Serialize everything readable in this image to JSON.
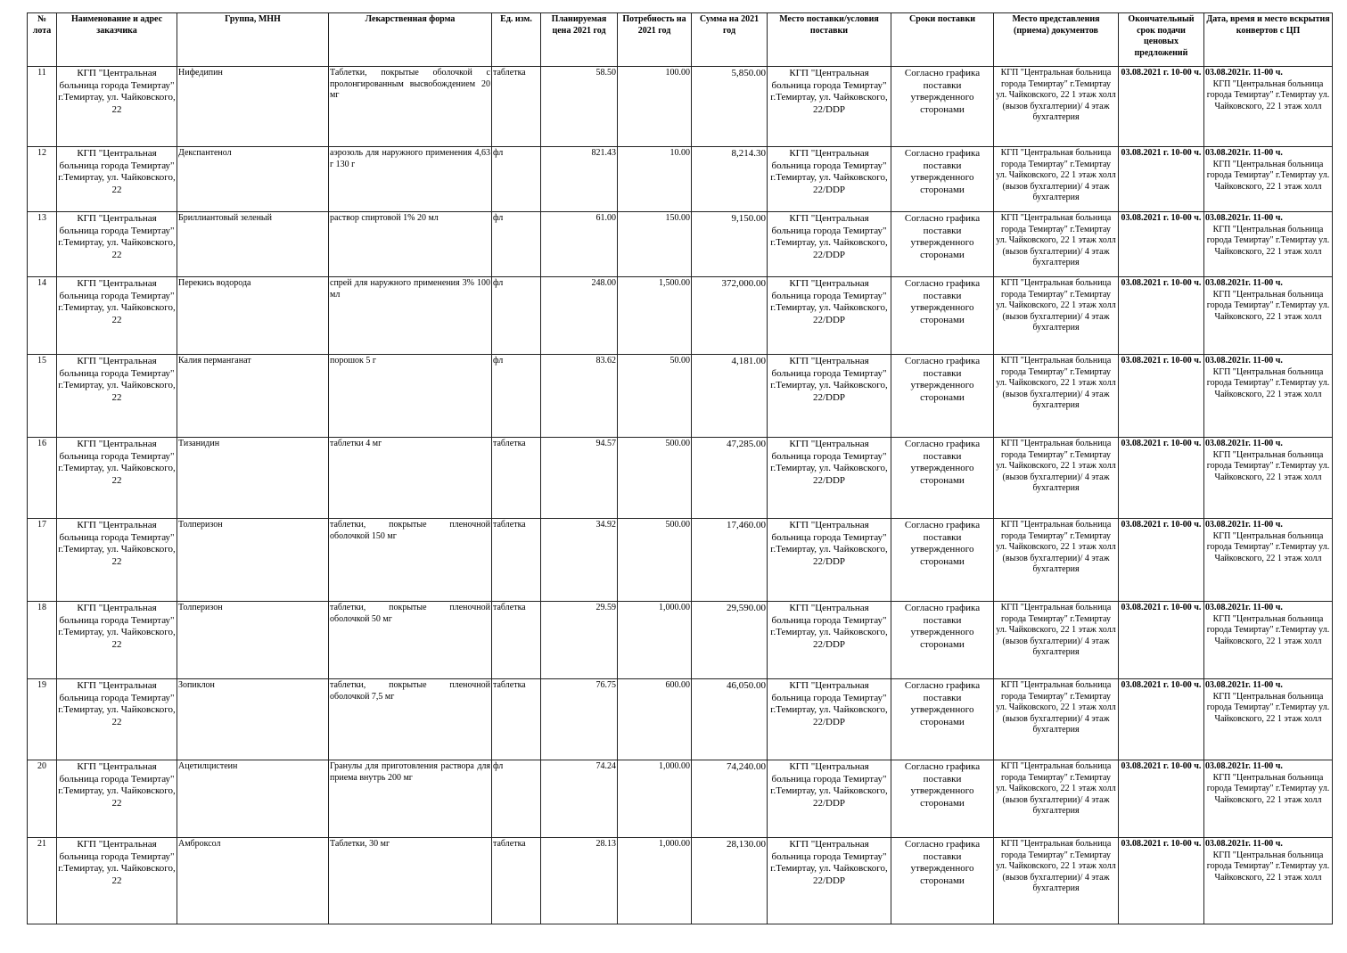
{
  "headers": [
    "№ лота",
    "Наименование и адрес заказчика",
    "Группа, МНН",
    "Лекарственная форма",
    "Ед. изм.",
    "Планируемая цена 2021 год",
    "Потребность на 2021 год",
    "Сумма на 2021 год",
    "Место поставки/условия поставки",
    "Сроки поставки",
    "Место представления (приема) документов",
    "Окончательный срок подачи ценовых предложений",
    "Дата, время и место вскрытия конвертов с ЦП"
  ],
  "common": {
    "customer": "КГП \"Центральная больница города Темиртау\" г.Темиртау, ул. Чайковского, 22",
    "delivery_place": "КГП \"Центральная больница города Темиртау\"  г.Темиртау, ул. Чайковского, 22/DDP",
    "delivery_terms": "Согласно графика поставки утвержденного сторонами",
    "docs_place": "КГП \"Центральная больница города Темиртау\"  г.Темиртау ул. Чайковского, 22 1 этаж холл (вызов бухгалтерии)/ 4 этаж бухгалтерия",
    "deadline": "03.08.2021 г. 10-00 ч.",
    "opening_datetime": "03.08.2021г. 11-00 ч.",
    "opening_place": "КГП \"Центральная больница города Темиртау\"  г.Темиртау ул. Чайковского, 22 1 этаж холл"
  },
  "rows": [
    {
      "lot": "11",
      "mnn": "Нифедипин",
      "form": "Таблетки, покрытые оболочкой с пролонгированным высвобождением 20 мг",
      "unit": "таблетка",
      "price": "58.50",
      "qty": "100.00",
      "sum": "5,850.00"
    },
    {
      "lot": "12",
      "mnn": "Декспантенол",
      "form": "аэрозоль для наружного применения 4,63 г 130 г",
      "unit": "фл",
      "price": "821.43",
      "qty": "10.00",
      "sum": "8,214.30"
    },
    {
      "lot": "13",
      "mnn": "Бриллиантовый зеленый",
      "form": "раствор спиртовой 1% 20 мл",
      "unit": "фл",
      "price": "61.00",
      "qty": "150.00",
      "sum": "9,150.00"
    },
    {
      "lot": "14",
      "mnn": "Перекись водорода",
      "form": "спрей для наружного применения 3% 100 мл",
      "unit": "фл",
      "price": "248.00",
      "qty": "1,500.00",
      "sum": "372,000.00"
    },
    {
      "lot": "15",
      "mnn": "Калия перманганат",
      "form": "порошок 5 г",
      "unit": "фл",
      "price": "83.62",
      "qty": "50.00",
      "sum": "4,181.00"
    },
    {
      "lot": "16",
      "mnn": "Тизанидин",
      "form": "таблетки 4 мг",
      "unit": "таблетка",
      "price": "94.57",
      "qty": "500.00",
      "sum": "47,285.00"
    },
    {
      "lot": "17",
      "mnn": "Толперизон",
      "form": "таблетки, покрытые пленочной оболочкой 150 мг",
      "unit": "таблетка",
      "price": "34.92",
      "qty": "500.00",
      "sum": "17,460.00"
    },
    {
      "lot": "18",
      "mnn": "Толперизон",
      "form": "таблетки, покрытые пленочной оболочкой 50 мг",
      "unit": "таблетка",
      "price": "29.59",
      "qty": "1,000.00",
      "sum": "29,590.00"
    },
    {
      "lot": "19",
      "mnn": "Зопиклон",
      "form": "таблетки, покрытые пленочной оболочкой 7,5 мг",
      "unit": "таблетка",
      "price": "76.75",
      "qty": "600.00",
      "sum": "46,050.00"
    },
    {
      "lot": "20",
      "mnn": "Ацетилцистеин",
      "form": "Гранулы для приготовления раствора для приема внутрь 200 мг",
      "unit": "фл",
      "price": "74.24",
      "qty": "1,000.00",
      "sum": "74,240.00"
    },
    {
      "lot": "21",
      "mnn": "Амброксол",
      "form": "Таблетки, 30 мг",
      "unit": "таблетка",
      "price": "28.13",
      "qty": "1,000.00",
      "sum": "28,130.00"
    }
  ]
}
